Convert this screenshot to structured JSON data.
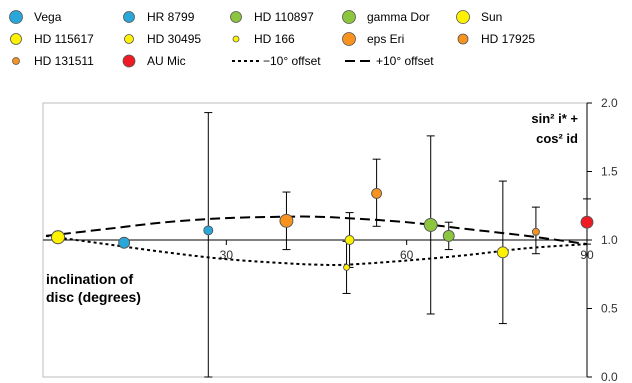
{
  "chart_data": {
    "type": "scatter",
    "title": "",
    "xlim": [
      0,
      90
    ],
    "ylim": [
      0,
      2.0
    ],
    "x_ticks": [
      "30",
      "60",
      "90"
    ],
    "y_ticks": [
      "0.0",
      "0.5",
      "1.0",
      "1.5",
      "2.0"
    ],
    "ylabel_lines": [
      "sin² i* +",
      "cos² id"
    ],
    "xlabel_lines": [
      "inclination of",
      "disc (degrees)"
    ],
    "grid": false,
    "legend_position": "top",
    "series": [
      {
        "name": "Vega",
        "color": "#2aa7d9",
        "marker_size": 6.5,
        "points": [
          {
            "x": 2,
            "y": 1.02
          }
        ]
      },
      {
        "name": "HR 8799",
        "color": "#2aa7d9",
        "marker_size": 5.5,
        "points": [
          {
            "x": 13,
            "y": 0.98
          }
        ]
      },
      {
        "name": "HD 110897",
        "color": "#8cc63f",
        "marker_size": 5.5,
        "points": [
          {
            "x": 67,
            "y": 1.03,
            "err_low": 0.93,
            "err_high": 1.13
          }
        ]
      },
      {
        "name": "gamma Dor",
        "color": "#8cc63f",
        "marker_size": 6.5,
        "points": [
          {
            "x": 64,
            "y": 1.11,
            "err_low": 0.46,
            "err_high": 1.76
          }
        ]
      },
      {
        "name": "Sun",
        "color": "#fff200",
        "marker_size": 6.5,
        "points": [
          {
            "x": 2,
            "y": 1.02
          }
        ]
      },
      {
        "name": "HD 115617",
        "color": "#fff200",
        "marker_size": 5.5,
        "points": [
          {
            "x": 76,
            "y": 0.91,
            "err_low": 0.39,
            "err_high": 1.43
          }
        ]
      },
      {
        "name": "HD 30495",
        "color": "#fff200",
        "marker_size": 4.5,
        "points": [
          {
            "x": 50.5,
            "y": 1.0,
            "err_low": 0.8,
            "err_high": 1.2
          }
        ]
      },
      {
        "name": "HD 166",
        "color": "#fff200",
        "marker_size": 3.0,
        "points": [
          {
            "x": 50,
            "y": 0.8,
            "err_low": 0.61,
            "err_high": 0.99
          }
        ]
      },
      {
        "name": "eps Eri",
        "color": "#f7931e",
        "marker_size": 6.5,
        "points": [
          {
            "x": 40,
            "y": 1.14,
            "err_low": 0.93,
            "err_high": 1.35
          }
        ]
      },
      {
        "name": "HD 17925",
        "color": "#f7931e",
        "marker_size": 5.0,
        "points": [
          {
            "x": 55,
            "y": 1.34,
            "err_low": 1.1,
            "err_high": 1.59
          }
        ]
      },
      {
        "name": "HD 131511",
        "color": "#f7931e",
        "marker_size": 3.5,
        "points": [
          {
            "x": 81.5,
            "y": 1.06,
            "err_low": 0.9,
            "err_high": 1.24
          }
        ]
      },
      {
        "name": "AU Mic",
        "color": "#ed1c24",
        "marker_size": 6.0,
        "points": [
          {
            "x": 90,
            "y": 1.13,
            "err_low": 0.97,
            "err_high": 1.3
          }
        ]
      },
      {
        "name": "Vega",
        "color": "#2aa7d9",
        "marker_size": 4.5,
        "points": [
          {
            "x": 27,
            "y": 1.07,
            "err_low": 0.0,
            "err_high": 1.93
          }
        ]
      }
    ],
    "curves": [
      {
        "name": "−10° offset",
        "dash": "3,3",
        "x": [
          0,
          10,
          20,
          30,
          40,
          45,
          50,
          60,
          70,
          80,
          90
        ],
        "y": [
          1.03,
          0.97,
          0.91,
          0.86,
          0.83,
          0.82,
          0.82,
          0.85,
          0.89,
          0.94,
          0.97
        ]
      },
      {
        "name": "+10° offset",
        "dash": "10,5",
        "x": [
          0,
          10,
          20,
          30,
          40,
          45,
          50,
          60,
          70,
          80,
          90
        ],
        "y": [
          1.03,
          1.08,
          1.13,
          1.16,
          1.17,
          1.17,
          1.16,
          1.13,
          1.08,
          1.03,
          0.97
        ]
      }
    ],
    "legend": [
      {
        "label": "Vega",
        "color": "#2aa7d9",
        "r": 6.5
      },
      {
        "label": "HR 8799",
        "color": "#2aa7d9",
        "r": 5.5
      },
      {
        "label": "HD 110897",
        "color": "#8cc63f",
        "r": 5.5
      },
      {
        "label": "gamma Dor",
        "color": "#8cc63f",
        "r": 6.5
      },
      {
        "label": "Sun",
        "color": "#fff200",
        "r": 6.5
      },
      {
        "label": "HD 115617",
        "color": "#fff200",
        "r": 5.5
      },
      {
        "label": "HD 30495",
        "color": "#fff200",
        "r": 4.5
      },
      {
        "label": "HD 166",
        "color": "#fff200",
        "r": 3.0
      },
      {
        "label": "eps Eri",
        "color": "#f7931e",
        "r": 6.5
      },
      {
        "label": "HD 17925",
        "color": "#f7931e",
        "r": 5.0
      },
      {
        "label": "HD 131511",
        "color": "#f7931e",
        "r": 3.5
      },
      {
        "label": "AU Mic",
        "color": "#ed1c24",
        "r": 6.0
      },
      {
        "label": "−10° offset",
        "dash": "3,3"
      },
      {
        "label": "+10° offset",
        "dash": "10,5"
      }
    ]
  }
}
